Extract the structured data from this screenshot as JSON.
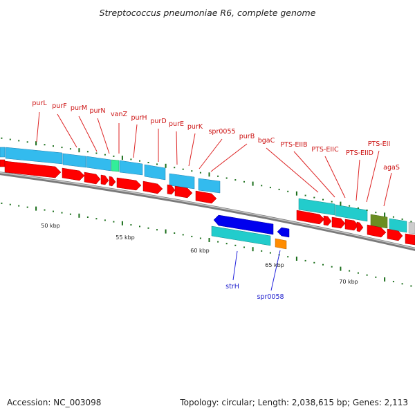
{
  "title": "Streptococcus pneumoniae R6, complete genome",
  "footer": {
    "accession": "Accession: NC_003098",
    "topology": "Topology: circular; Length: 2,038,615 bp; Genes: 2,113"
  },
  "colors": {
    "backbone": "#8c8c8c",
    "cds_forward": "#ff0000",
    "gene_forward": "#33bbee",
    "gene_reverse": "#22cccc",
    "cds_reverse": "#0000ee",
    "label_top": "#cc1111",
    "label_bottom": "#1a1acc",
    "tick": "#1a6e1a"
  },
  "kbp_marks": [
    {
      "label": "50 kbp",
      "kbp": 50
    },
    {
      "label": "55 kbp",
      "kbp": 55
    },
    {
      "label": "60 kbp",
      "kbp": 60
    },
    {
      "label": "65 kbp",
      "kbp": 65
    },
    {
      "label": "70 kbp",
      "kbp": 70
    }
  ],
  "top_labels": [
    {
      "name": "purL"
    },
    {
      "name": "purF"
    },
    {
      "name": "purM"
    },
    {
      "name": "purN"
    },
    {
      "name": "vanZ"
    },
    {
      "name": "purH"
    },
    {
      "name": "purD"
    },
    {
      "name": "purE"
    },
    {
      "name": "purK"
    },
    {
      "name": "spr0055"
    },
    {
      "name": "purB"
    },
    {
      "name": "bgaC"
    },
    {
      "name": "PTS-EIIB"
    },
    {
      "name": "PTS-EIIC"
    },
    {
      "name": "PTS-EIID"
    },
    {
      "name": "PTS-EII"
    },
    {
      "name": "agaS"
    }
  ],
  "bottom_labels": [
    {
      "name": "strH"
    },
    {
      "name": "spr0058"
    }
  ]
}
